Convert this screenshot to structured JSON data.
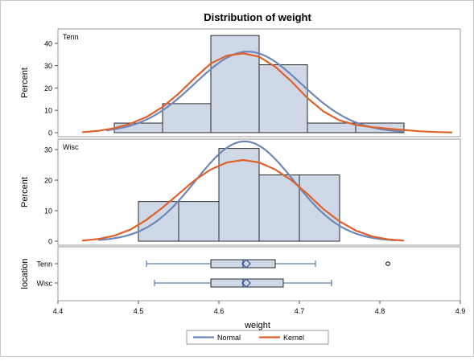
{
  "chart_data": {
    "type": "histogram",
    "title": "Distribution of weight",
    "xlabel": "weight",
    "x_ticks": [
      "4.4",
      "4.5",
      "4.6",
      "4.7",
      "4.8",
      "4.9"
    ],
    "xlim": [
      4.4,
      4.9
    ],
    "legend": {
      "placement": "bottom-center",
      "entries": [
        {
          "name": "Normal",
          "color": "#6c87b8"
        },
        {
          "name": "Kernel",
          "color": "#e0602a"
        }
      ]
    },
    "bar_fill": "#cfd8e7",
    "bar_stroke": "#2a2a2a",
    "panels": [
      {
        "label": "Tenn",
        "ylabel": "Percent",
        "ylim": [
          0,
          45
        ],
        "y_ticks": [
          0,
          10,
          20,
          30,
          40
        ],
        "bins": [
          {
            "x0": 4.47,
            "x1": 4.53,
            "value": 4.3
          },
          {
            "x0": 4.53,
            "x1": 4.59,
            "value": 13.0
          },
          {
            "x0": 4.59,
            "x1": 4.65,
            "value": 43.5
          },
          {
            "x0": 4.65,
            "x1": 4.71,
            "value": 30.4
          },
          {
            "x0": 4.71,
            "x1": 4.77,
            "value": 4.3
          },
          {
            "x0": 4.77,
            "x1": 4.83,
            "value": 4.3
          }
        ],
        "normal": {
          "mean": 4.636,
          "sd": 0.066,
          "x_range": [
            4.46,
            4.83
          ]
        },
        "kernel": {
          "x": [
            4.43,
            4.45,
            4.47,
            4.49,
            4.51,
            4.53,
            4.55,
            4.57,
            4.59,
            4.61,
            4.63,
            4.65,
            4.67,
            4.69,
            4.71,
            4.73,
            4.75,
            4.77,
            4.79,
            4.81,
            4.83,
            4.85,
            4.87,
            4.89
          ],
          "values": [
            0.2,
            0.8,
            2.0,
            4.0,
            7.0,
            11.5,
            17.5,
            24.5,
            31.0,
            34.5,
            35.5,
            34.0,
            29.5,
            23.0,
            15.5,
            9.5,
            5.5,
            3.5,
            2.5,
            1.8,
            1.2,
            0.6,
            0.3,
            0.1
          ]
        }
      },
      {
        "label": "Wisc",
        "ylabel": "Percent",
        "ylim": [
          0,
          32.4
        ],
        "y_ticks": [
          0,
          10,
          20,
          30
        ],
        "bins": [
          {
            "x0": 4.5,
            "x1": 4.55,
            "value": 13.0
          },
          {
            "x0": 4.55,
            "x1": 4.6,
            "value": 13.0
          },
          {
            "x0": 4.6,
            "x1": 4.65,
            "value": 30.4
          },
          {
            "x0": 4.65,
            "x1": 4.7,
            "value": 21.7
          },
          {
            "x0": 4.7,
            "x1": 4.75,
            "value": 21.7
          }
        ],
        "normal": {
          "mean": 4.632,
          "sd": 0.061,
          "x_range": [
            4.45,
            4.82
          ]
        },
        "kernel": {
          "x": [
            4.43,
            4.45,
            4.47,
            4.49,
            4.51,
            4.53,
            4.55,
            4.57,
            4.59,
            4.61,
            4.63,
            4.65,
            4.67,
            4.69,
            4.71,
            4.73,
            4.75,
            4.77,
            4.79,
            4.81,
            4.83
          ],
          "values": [
            0.2,
            0.7,
            1.8,
            3.8,
            7.0,
            11.0,
            15.5,
            20.0,
            23.5,
            25.8,
            26.6,
            25.8,
            23.5,
            20.0,
            15.5,
            10.5,
            6.5,
            3.5,
            1.6,
            0.6,
            0.2
          ]
        }
      }
    ],
    "boxplot": {
      "ylabel": "location",
      "groups": [
        {
          "label": "Tenn",
          "min": 4.51,
          "q1": 4.59,
          "median": 4.63,
          "mean": 4.634,
          "q3": 4.67,
          "max": 4.72,
          "outliers": [
            4.81
          ]
        },
        {
          "label": "Wisc",
          "min": 4.52,
          "q1": 4.59,
          "median": 4.63,
          "mean": 4.634,
          "q3": 4.68,
          "max": 4.74,
          "outliers": []
        }
      ]
    }
  }
}
